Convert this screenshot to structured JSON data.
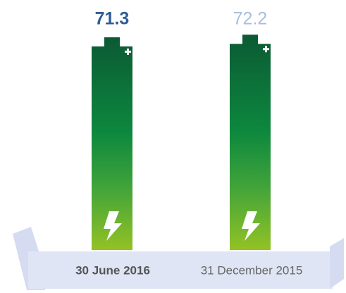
{
  "chart_data": {
    "type": "bar",
    "categories": [
      "30 June 2016",
      "31 December 2015"
    ],
    "values": [
      71.3,
      72.2
    ],
    "ylim": [
      0,
      73
    ]
  }
}
